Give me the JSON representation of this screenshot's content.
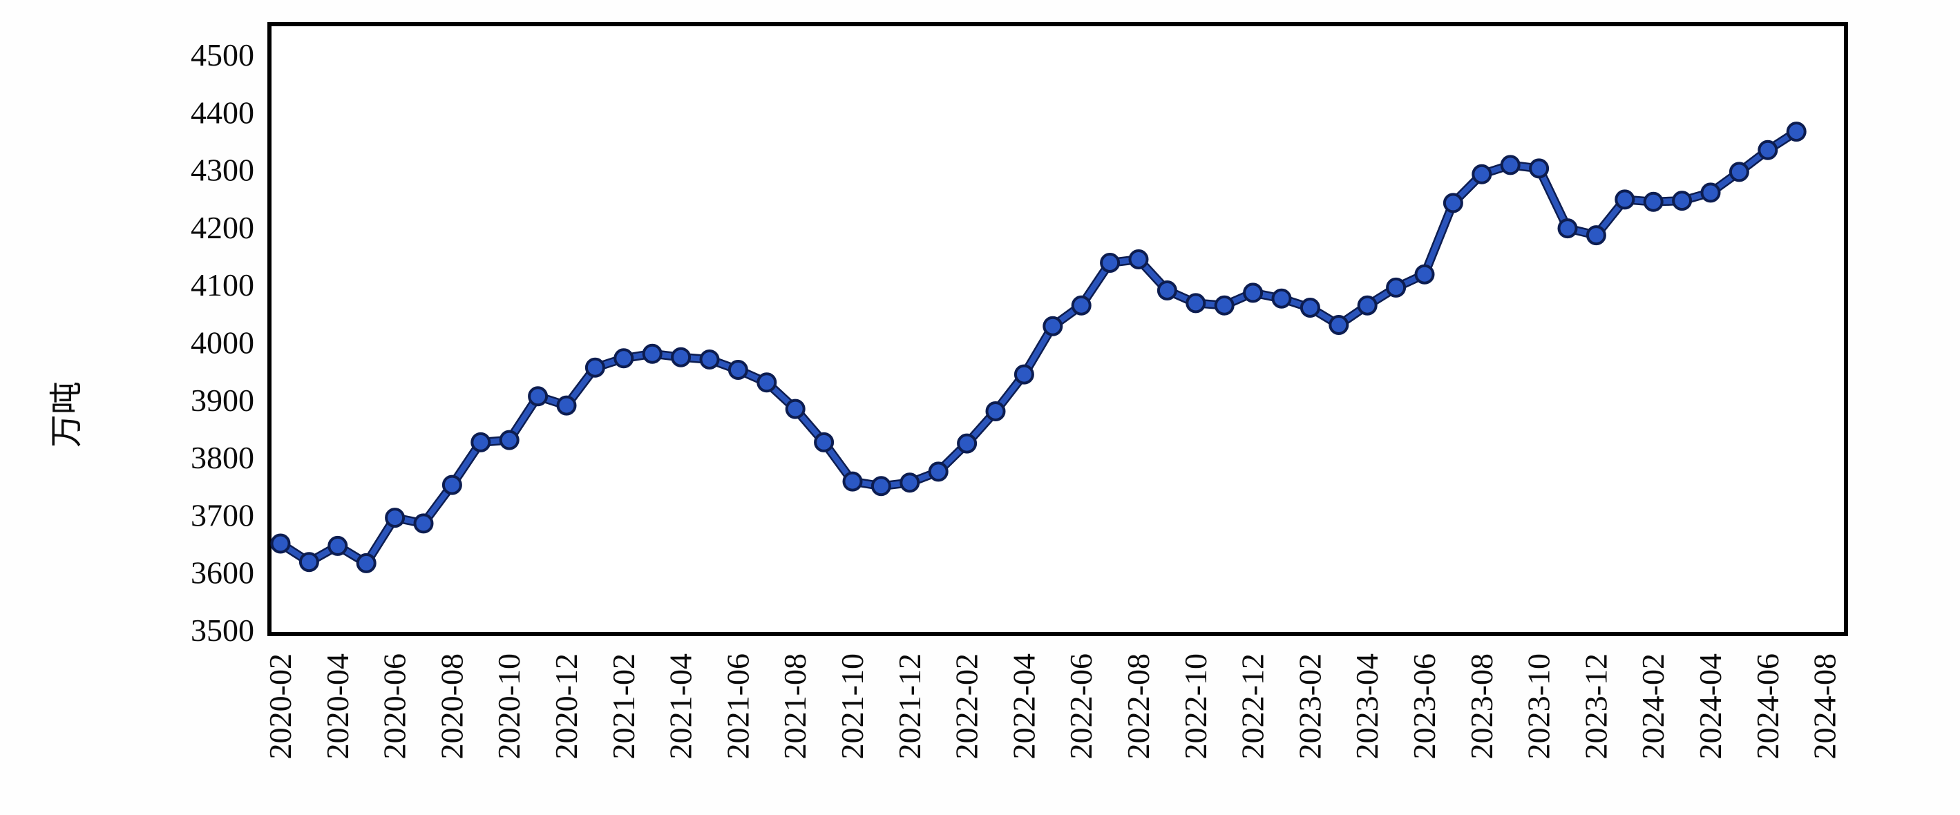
{
  "chart_data": {
    "type": "line",
    "title": "",
    "ylabel": "万吨",
    "xlabel": "",
    "ylim": [
      3500,
      4500
    ],
    "y_ticks": [
      3500,
      3600,
      3700,
      3800,
      3900,
      4000,
      4100,
      4200,
      4300,
      4400,
      4500
    ],
    "x_tick_labels": [
      "2020-02",
      "2020-04",
      "2020-06",
      "2020-08",
      "2020-10",
      "2020-12",
      "2021-02",
      "2021-04",
      "2021-06",
      "2021-08",
      "2021-10",
      "2021-12",
      "2022-02",
      "2022-04",
      "2022-06",
      "2022-08",
      "2022-10",
      "2022-12",
      "2023-02",
      "2023-04",
      "2023-06",
      "2023-08",
      "2023-10",
      "2023-12",
      "2024-02",
      "2024-04",
      "2024-06",
      "2024-08"
    ],
    "grid": false,
    "legend": null,
    "line_color": "#2a54bb",
    "marker_fill": "#2b58c4",
    "marker_edge": "#0d1d50",
    "axis_color": "#000000",
    "x": [
      "2020-02",
      "2020-03",
      "2020-04",
      "2020-05",
      "2020-06",
      "2020-07",
      "2020-08",
      "2020-09",
      "2020-10",
      "2020-11",
      "2020-12",
      "2021-01",
      "2021-02",
      "2021-03",
      "2021-04",
      "2021-05",
      "2021-06",
      "2021-07",
      "2021-08",
      "2021-09",
      "2021-10",
      "2021-11",
      "2021-12",
      "2022-01",
      "2022-02",
      "2022-03",
      "2022-04",
      "2022-05",
      "2022-06",
      "2022-07",
      "2022-08",
      "2022-09",
      "2022-10",
      "2022-11",
      "2022-12",
      "2023-01",
      "2023-02",
      "2023-03",
      "2023-04",
      "2023-05",
      "2023-06",
      "2023-07",
      "2023-08",
      "2023-09",
      "2023-10",
      "2023-11",
      "2023-12",
      "2024-01",
      "2024-02",
      "2024-03",
      "2024-04",
      "2024-05",
      "2024-06",
      "2024-07"
    ],
    "values": [
      3650,
      3618,
      3646,
      3616,
      3695,
      3685,
      3752,
      3826,
      3830,
      3906,
      3890,
      3956,
      3972,
      3980,
      3974,
      3970,
      3952,
      3930,
      3884,
      3826,
      3758,
      3750,
      3756,
      3775,
      3824,
      3880,
      3944,
      4028,
      4064,
      4138,
      4144,
      4090,
      4068,
      4064,
      4086,
      4076,
      4060,
      4030,
      4064,
      4095,
      4118,
      4242,
      4292,
      4308,
      4302,
      4198,
      4186,
      4248,
      4244,
      4246,
      4260,
      4296,
      4334,
      4366
    ]
  }
}
